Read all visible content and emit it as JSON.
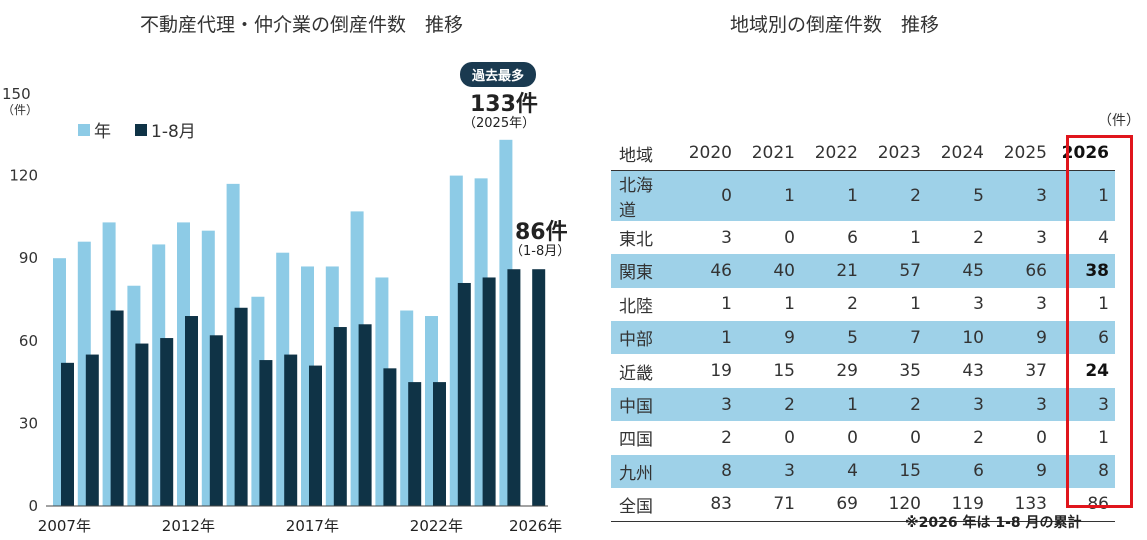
{
  "left_title": "不動産代理・仲介業の倒産件数　推移",
  "right_title": "地域別の倒産件数　推移",
  "chart_data": {
    "type": "bar",
    "title": "不動産代理・仲介業の倒産件数　推移",
    "y_unit_value": "150",
    "y_unit_label": "（件）",
    "ylim": [
      0,
      150
    ],
    "yticks": [
      "0",
      "30",
      "60",
      "90",
      "120"
    ],
    "xtick_labels": [
      "2007年",
      "2012年",
      "2017年",
      "2022年",
      "2026年"
    ],
    "categories": [
      "2007",
      "2008",
      "2009",
      "2010",
      "2011",
      "2012",
      "2013",
      "2014",
      "2015",
      "2016",
      "2017",
      "2018",
      "2019",
      "2020",
      "2021",
      "2022",
      "2023",
      "2024",
      "2025",
      "2026"
    ],
    "series": [
      {
        "name": "年",
        "color": "#8dcbe6",
        "values": [
          90,
          96,
          103,
          80,
          95,
          103,
          100,
          117,
          76,
          92,
          87,
          87,
          107,
          83,
          71,
          69,
          120,
          119,
          133,
          null
        ]
      },
      {
        "name": "1-8月",
        "color": "#0f3346",
        "values": [
          52,
          55,
          71,
          59,
          61,
          69,
          62,
          72,
          53,
          55,
          51,
          65,
          66,
          50,
          45,
          45,
          81,
          83,
          86,
          86
        ]
      }
    ],
    "legend": "top-left",
    "grid": false,
    "annotations": {
      "badge": "過去最多",
      "peak_value": "133件",
      "peak_sub": "（2025年）",
      "latest_value": "86件",
      "latest_sub": "（1-8月）"
    }
  },
  "table": {
    "unit": "（件）",
    "header": [
      "地域",
      "2020",
      "2021",
      "2022",
      "2023",
      "2024",
      "2025",
      "2026"
    ],
    "rows": [
      [
        "北海道",
        "0",
        "1",
        "1",
        "2",
        "5",
        "3",
        "1"
      ],
      [
        "東北",
        "3",
        "0",
        "6",
        "1",
        "2",
        "3",
        "4"
      ],
      [
        "関東",
        "46",
        "40",
        "21",
        "57",
        "45",
        "66",
        "38"
      ],
      [
        "北陸",
        "1",
        "1",
        "2",
        "1",
        "3",
        "3",
        "1"
      ],
      [
        "中部",
        "1",
        "9",
        "5",
        "7",
        "10",
        "9",
        "6"
      ],
      [
        "近畿",
        "19",
        "15",
        "29",
        "35",
        "43",
        "37",
        "24"
      ],
      [
        "中国",
        "3",
        "2",
        "1",
        "2",
        "3",
        "3",
        "3"
      ],
      [
        "四国",
        "2",
        "0",
        "0",
        "0",
        "2",
        "0",
        "1"
      ],
      [
        "九州",
        "8",
        "3",
        "4",
        "15",
        "6",
        "9",
        "8"
      ],
      [
        "全国",
        "83",
        "71",
        "69",
        "120",
        "119",
        "133",
        "86"
      ]
    ],
    "bold_last_rows": [
      2,
      5
    ],
    "note": "※2026 年は 1-8 月の累計",
    "highlight_color": "#e0151c"
  }
}
